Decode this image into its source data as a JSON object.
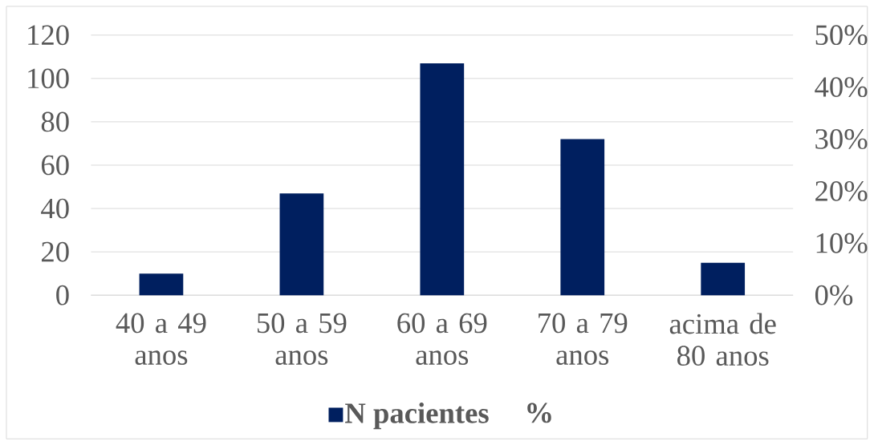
{
  "chart_data": {
    "type": "bar",
    "categories": [
      "40 a 49 anos",
      "50 a 59 anos",
      "60 a 69 anos",
      "70 a 79 anos",
      "acima de 80 anos"
    ],
    "series": [
      {
        "name": "N pacientes",
        "color": "#001f5f",
        "values": [
          10,
          47,
          107,
          72,
          15
        ]
      },
      {
        "name": "%",
        "values": [
          null,
          null,
          null,
          null,
          null
        ]
      }
    ],
    "ylim": [
      0,
      120
    ],
    "yticks": [
      0,
      20,
      40,
      60,
      80,
      100,
      120
    ],
    "y2lim": [
      0,
      50
    ],
    "y2ticks": [
      {
        "value": 0,
        "label": "0%"
      },
      {
        "value": 10,
        "label": "10%"
      },
      {
        "value": 20,
        "label": "20%"
      },
      {
        "value": 30,
        "label": "30%"
      },
      {
        "value": 40,
        "label": "40%"
      },
      {
        "value": 50,
        "label": "50%"
      }
    ],
    "grid": "y",
    "legend": "bottom"
  }
}
